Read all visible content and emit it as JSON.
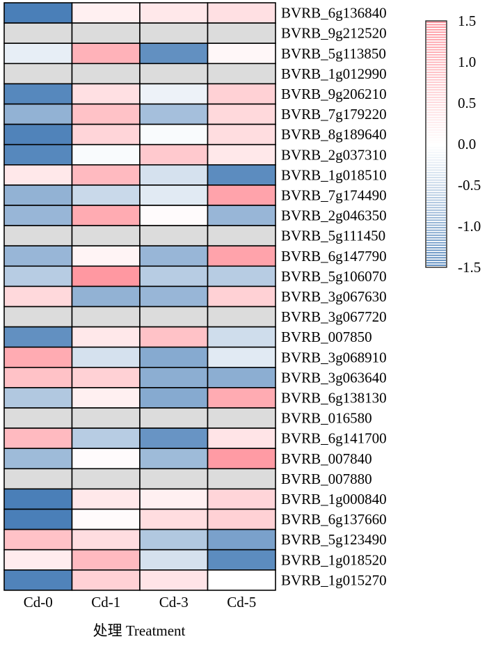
{
  "chart_data": {
    "type": "heatmap",
    "columns": [
      "Cd-0",
      "Cd-1",
      "Cd-3",
      "Cd-5"
    ],
    "xlabel": "处理 Treatment",
    "rows": [
      "BVRB_6g136840",
      "BVRB_9g212520",
      "BVRB_5g113850",
      "BVRB_1g012990",
      "BVRB_9g206210",
      "BVRB_7g179220",
      "BVRB_8g189640",
      "BVRB_2g037310",
      "BVRB_1g018510",
      "BVRB_7g174490",
      "BVRB_2g046350",
      "BVRB_5g111450",
      "BVRB_6g147790",
      "BVRB_5g106070",
      "BVRB_3g067630",
      "BVRB_3g067720",
      "BVRB_007850",
      "BVRB_3g068910",
      "BVRB_3g063640",
      "BVRB_6g138130",
      "BVRB_016580",
      "BVRB_6g141700",
      "BVRB_007840",
      "BVRB_007880",
      "BVRB_1g000840",
      "BVRB_6g137660",
      "BVRB_5g123490",
      "BVRB_1g018520",
      "BVRB_1g015270"
    ],
    "values": [
      [
        -1.5,
        0.2,
        0.3,
        0.4
      ],
      [
        null,
        null,
        null,
        null
      ],
      [
        -0.2,
        1.0,
        -1.3,
        0.1
      ],
      [
        null,
        null,
        null,
        null
      ],
      [
        -1.4,
        0.4,
        -0.15,
        0.6
      ],
      [
        -0.9,
        0.8,
        -0.75,
        0.5
      ],
      [
        -1.45,
        0.55,
        -0.05,
        0.45
      ],
      [
        -1.4,
        -0.05,
        0.7,
        0.3
      ],
      [
        0.3,
        0.9,
        -0.35,
        -1.35
      ],
      [
        -0.9,
        -0.45,
        -0.25,
        1.2
      ],
      [
        -0.85,
        1.1,
        0.05,
        -0.85
      ],
      [
        null,
        null,
        null,
        null
      ],
      [
        -0.85,
        0.15,
        -0.85,
        1.2
      ],
      [
        -0.6,
        1.35,
        -0.6,
        -0.6
      ],
      [
        0.5,
        -0.9,
        -0.85,
        0.6
      ],
      [
        null,
        null,
        null,
        null
      ],
      [
        -1.3,
        0.3,
        0.8,
        -0.4
      ],
      [
        1.1,
        -0.35,
        -1.0,
        -0.25
      ],
      [
        0.8,
        0.6,
        -0.95,
        -0.95
      ],
      [
        -0.65,
        0.2,
        -1.0,
        1.1
      ],
      [
        null,
        null,
        null,
        null
      ],
      [
        0.9,
        -0.6,
        -1.25,
        0.35
      ],
      [
        -0.8,
        0.05,
        -0.8,
        1.3
      ],
      [
        null,
        null,
        null,
        null
      ],
      [
        -1.55,
        0.3,
        0.2,
        0.55
      ],
      [
        -1.5,
        0.05,
        0.45,
        0.6
      ],
      [
        0.8,
        0.45,
        -0.65,
        -1.1
      ],
      [
        0.25,
        0.9,
        -0.35,
        -1.35
      ],
      [
        -1.45,
        0.6,
        0.35,
        0.0
      ]
    ],
    "na_color": "#dcdcdc",
    "colorscale": {
      "min": -1.5,
      "max": 1.5,
      "low_color": "#4a7fb8",
      "mid_color": "#ffffff",
      "high_color": "#ff8c96"
    },
    "legend": {
      "position": "top-right",
      "ticks": [
        {
          "value": 1.5,
          "label": "1.5"
        },
        {
          "value": 1.0,
          "label": "1.0"
        },
        {
          "value": 0.5,
          "label": "0.5"
        },
        {
          "value": 0.0,
          "label": "0.0"
        },
        {
          "value": -0.5,
          "label": "-0.5"
        },
        {
          "value": -1.0,
          "label": "-1.0"
        },
        {
          "value": -1.5,
          "label": "-1.5"
        }
      ]
    }
  }
}
